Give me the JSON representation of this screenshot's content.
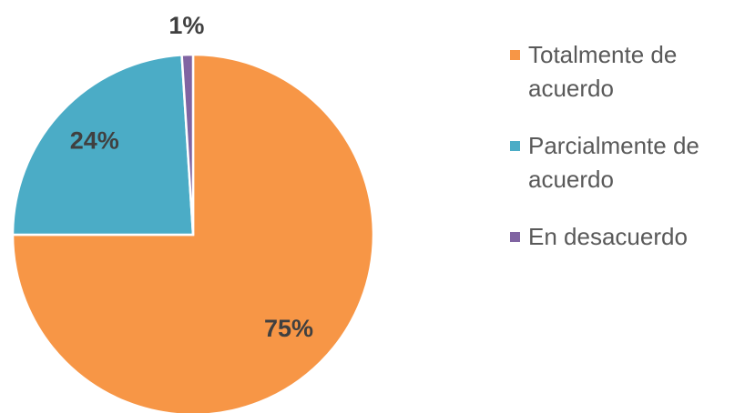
{
  "chart_data": {
    "type": "pie",
    "categories": [
      "Totalmente de acuerdo",
      "Parcialmente de acuerdo",
      "En desacuerdo"
    ],
    "values": [
      75,
      24,
      1
    ],
    "value_labels": [
      "75%",
      "24%",
      "1%"
    ],
    "colors": [
      "#f79646",
      "#4bacc6",
      "#8064a2"
    ],
    "legend": "right"
  }
}
